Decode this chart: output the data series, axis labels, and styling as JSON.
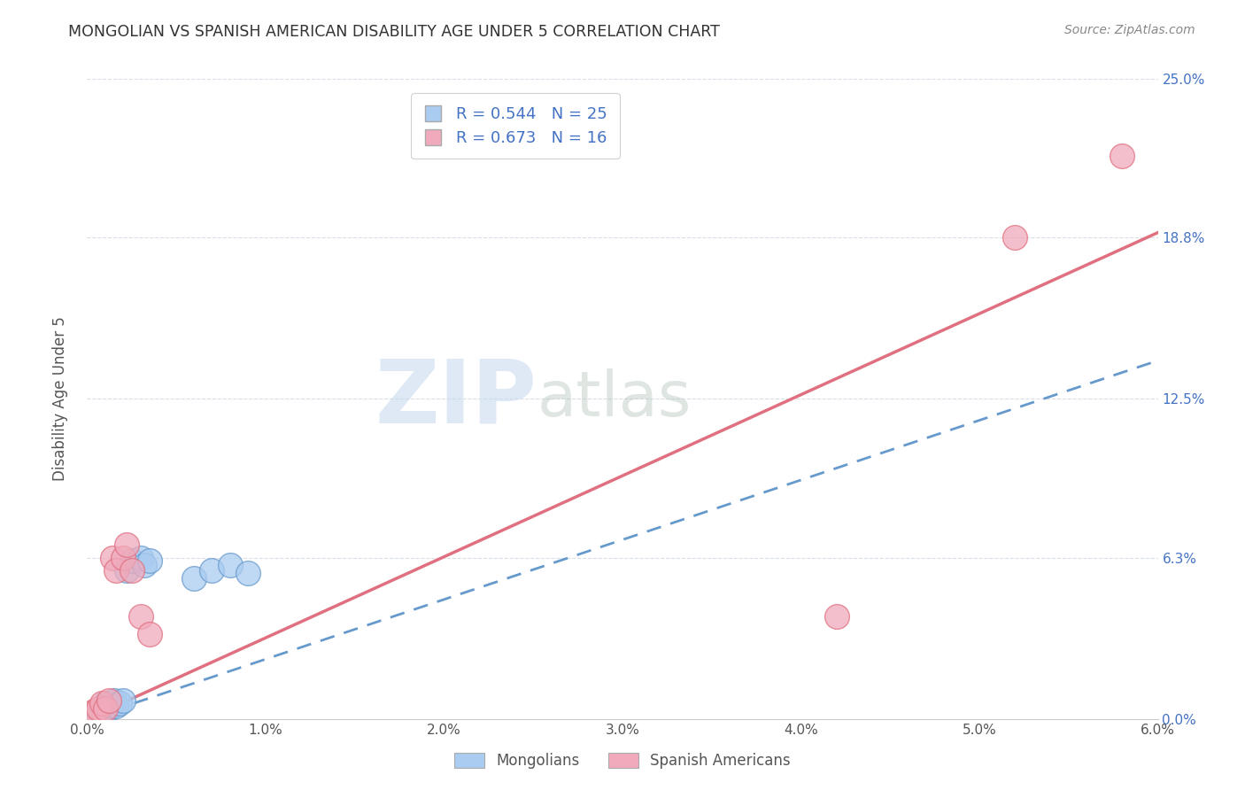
{
  "title": "MONGOLIAN VS SPANISH AMERICAN DISABILITY AGE UNDER 5 CORRELATION CHART",
  "source": "Source: ZipAtlas.com",
  "ylabel_label": "Disability Age Under 5",
  "mongolians_x": [
    0.0002,
    0.0003,
    0.0005,
    0.0006,
    0.0007,
    0.0008,
    0.0009,
    0.001,
    0.001,
    0.0012,
    0.0013,
    0.0014,
    0.0015,
    0.0016,
    0.0018,
    0.002,
    0.0022,
    0.0025,
    0.003,
    0.0032,
    0.0035,
    0.006,
    0.007,
    0.008,
    0.009
  ],
  "mongolians_y": [
    0.001,
    0.002,
    0.002,
    0.003,
    0.003,
    0.004,
    0.003,
    0.005,
    0.006,
    0.004,
    0.005,
    0.006,
    0.007,
    0.005,
    0.006,
    0.007,
    0.058,
    0.062,
    0.063,
    0.06,
    0.062,
    0.055,
    0.058,
    0.06,
    0.057
  ],
  "spanish_x": [
    0.0002,
    0.0004,
    0.0006,
    0.0008,
    0.001,
    0.0012,
    0.0014,
    0.0016,
    0.002,
    0.0022,
    0.0025,
    0.003,
    0.0035,
    0.042,
    0.052,
    0.058
  ],
  "spanish_y": [
    0.002,
    0.003,
    0.004,
    0.006,
    0.004,
    0.007,
    0.063,
    0.058,
    0.063,
    0.068,
    0.058,
    0.04,
    0.033,
    0.04,
    0.188,
    0.22
  ],
  "mongolians_R": 0.544,
  "mongolians_N": 25,
  "spanish_R": 0.673,
  "spanish_N": 16,
  "mongolian_color": "#aaccf0",
  "spanish_color": "#f0aabb",
  "mongolian_line_color": "#6699cc",
  "spanish_line_color": "#e07080",
  "watermark_zip": "ZIP",
  "watermark_atlas": "atlas",
  "legend_mongolians": "Mongolians",
  "legend_spanish": "Spanish Americans",
  "xlim": [
    0,
    0.06
  ],
  "ylim": [
    0,
    0.25
  ],
  "yticks_right": [
    0.0,
    0.063,
    0.125,
    0.188,
    0.25
  ],
  "ytick_labels_right": [
    "0.0%",
    "6.3%",
    "12.5%",
    "18.8%",
    "25.0%"
  ],
  "xticks": [
    0.0,
    0.01,
    0.02,
    0.03,
    0.04,
    0.05,
    0.06
  ],
  "xtick_labels": [
    "0.0%",
    "1.0%",
    "2.0%",
    "3.0%",
    "4.0%",
    "5.0%",
    "6.0%"
  ],
  "grid_color": "#d8dde8",
  "background_color": "#ffffff",
  "mon_line_x0": 0.0,
  "mon_line_y0": 0.0,
  "mon_line_x1": 0.06,
  "mon_line_y1": 0.14,
  "spa_line_x0": 0.0,
  "spa_line_y0": 0.0,
  "spa_line_x1": 0.06,
  "spa_line_y1": 0.19
}
